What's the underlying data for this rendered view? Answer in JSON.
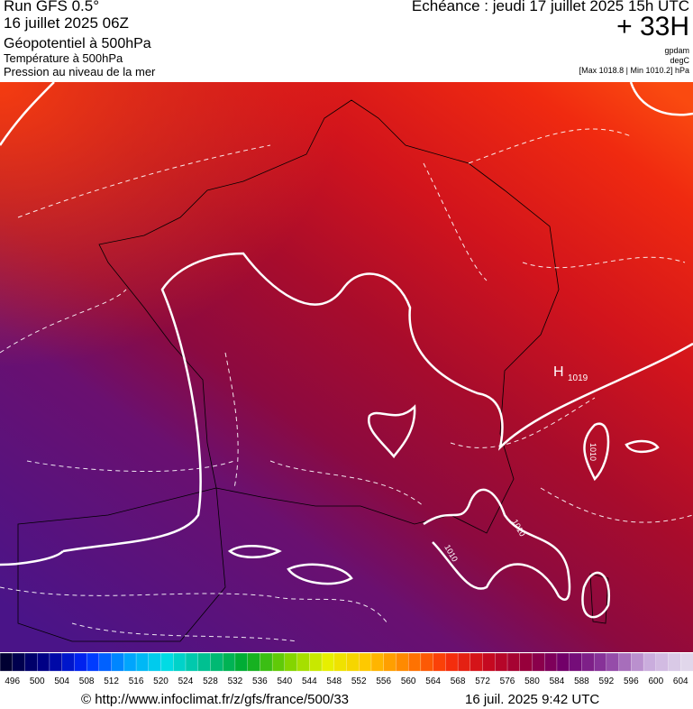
{
  "header": {
    "run": "Run GFS 0.5°",
    "run_date": "16 juillet 2025 06Z",
    "layer1": "Géopotentiel à 500hPa",
    "layer2": "Température à 500hPa",
    "layer3": "Pression au niveau de la mer",
    "valid": "Echéance : jeudi 17 juillet 2025 15h UTC",
    "lead": "+ 33H",
    "unit1": "gpdam",
    "unit2": "degC",
    "pressure_range": "[Max 1018.8 | Min 1010.2] hPa"
  },
  "map": {
    "high_label": "H",
    "high_value": "1019",
    "isobar_labels": [
      "1010",
      "1010",
      "1010"
    ]
  },
  "colorbar": {
    "ticks": [
      496,
      500,
      504,
      508,
      512,
      516,
      520,
      524,
      528,
      532,
      536,
      540,
      544,
      548,
      552,
      556,
      560,
      564,
      568,
      572,
      576,
      580,
      584,
      588,
      592,
      596,
      600,
      604
    ]
  },
  "footer": {
    "source": "© http://www.infoclimat.fr/z/gfs/france/500/33",
    "timestamp": "16 juil. 2025  9:42 UTC"
  }
}
